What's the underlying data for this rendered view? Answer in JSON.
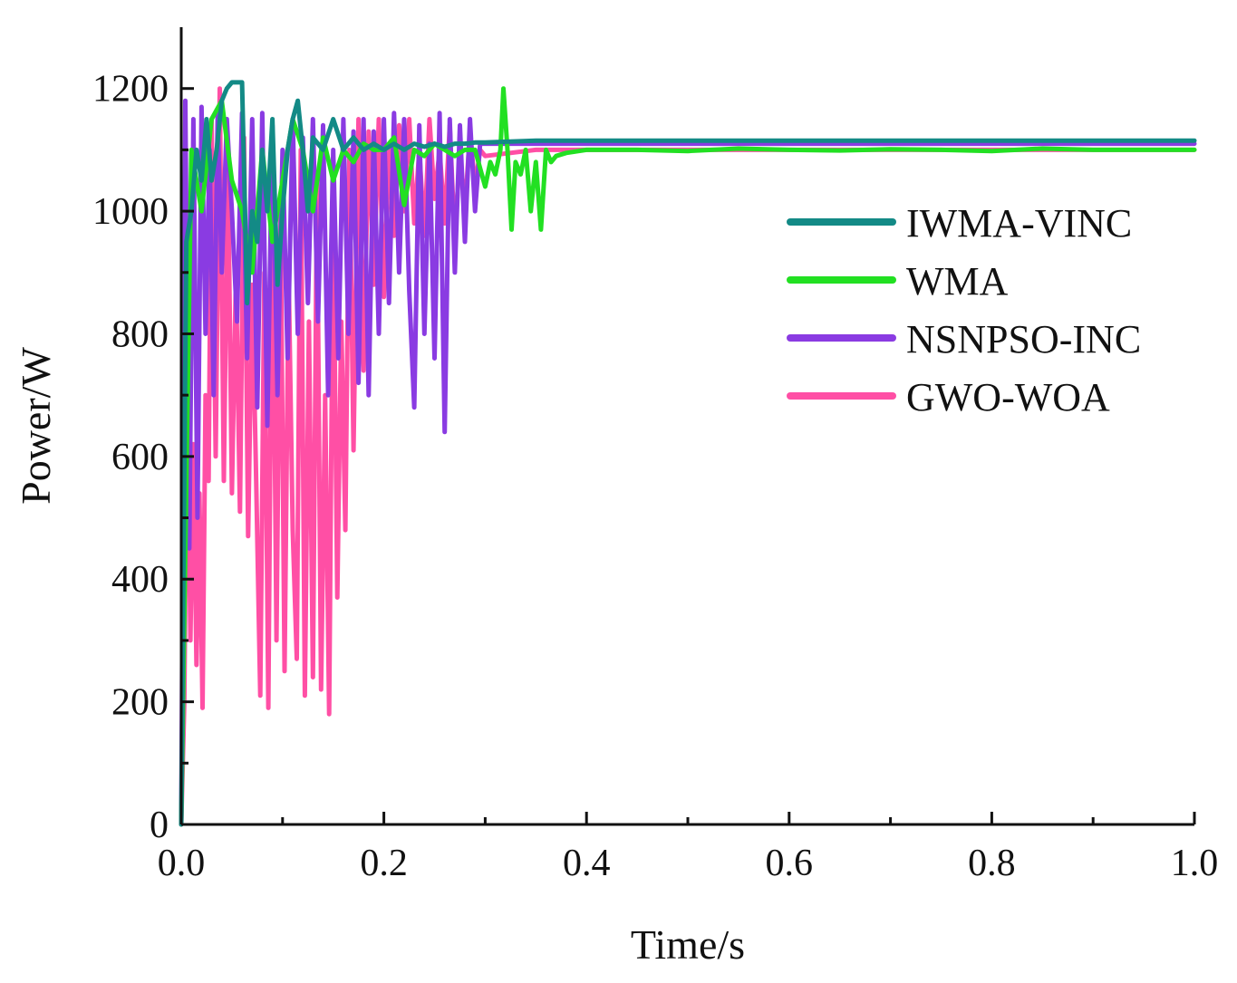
{
  "chart_data": {
    "type": "line",
    "xlabel": "Time/s",
    "ylabel": "Power/W",
    "xlim": [
      0,
      1.0
    ],
    "ylim": [
      0,
      1300
    ],
    "x_ticks": [
      0.0,
      0.2,
      0.4,
      0.6,
      0.8,
      1.0
    ],
    "x_tick_labels": [
      "0.0",
      "0.2",
      "0.4",
      "0.6",
      "0.8",
      "1.0"
    ],
    "x_minor_ticks": [
      0.1,
      0.3,
      0.5,
      0.7,
      0.9
    ],
    "y_ticks": [
      0,
      200,
      400,
      600,
      800,
      1000,
      1200
    ],
    "y_tick_labels": [
      "0",
      "200",
      "400",
      "600",
      "800",
      "1000",
      "1200"
    ],
    "y_minor_ticks": [
      100,
      300,
      500,
      700,
      900,
      1100
    ],
    "grid": false,
    "legend_position": "right-upper",
    "series": [
      {
        "name": "GWO-WOA",
        "color": "#ff4fa5",
        "x": [
          0.0,
          0.003,
          0.006,
          0.009,
          0.012,
          0.015,
          0.018,
          0.021,
          0.024,
          0.027,
          0.03,
          0.034,
          0.038,
          0.042,
          0.046,
          0.05,
          0.054,
          0.058,
          0.062,
          0.066,
          0.07,
          0.074,
          0.078,
          0.082,
          0.086,
          0.09,
          0.094,
          0.098,
          0.102,
          0.106,
          0.11,
          0.114,
          0.118,
          0.122,
          0.126,
          0.13,
          0.134,
          0.138,
          0.142,
          0.146,
          0.15,
          0.154,
          0.158,
          0.162,
          0.166,
          0.17,
          0.175,
          0.18,
          0.185,
          0.19,
          0.195,
          0.2,
          0.205,
          0.21,
          0.215,
          0.22,
          0.225,
          0.23,
          0.235,
          0.24,
          0.245,
          0.25,
          0.255,
          0.26,
          0.265,
          0.27,
          0.275,
          0.28,
          0.285,
          0.29,
          0.295,
          0.3,
          0.35,
          0.4,
          0.5,
          0.6,
          0.7,
          0.8,
          0.9,
          1.0
        ],
        "values": [
          0,
          200,
          750,
          300,
          620,
          260,
          540,
          190,
          700,
          560,
          1150,
          600,
          1200,
          560,
          1100,
          540,
          900,
          510,
          1120,
          470,
          880,
          560,
          210,
          900,
          190,
          1050,
          300,
          1000,
          250,
          900,
          480,
          270,
          1100,
          210,
          820,
          240,
          1050,
          220,
          700,
          180,
          1000,
          370,
          820,
          480,
          1100,
          610,
          1150,
          740,
          1130,
          880,
          1150,
          860,
          1100,
          960,
          1140,
          1000,
          1150,
          980,
          1100,
          960,
          1150,
          1020,
          1100,
          980,
          1140,
          950,
          1100,
          1000,
          1130,
          1040,
          1100,
          1090,
          1100,
          1100,
          1100,
          1100,
          1100,
          1100,
          1100,
          1100
        ]
      },
      {
        "name": "NSNPSO-INC",
        "color": "#8a3be2",
        "x": [
          0.0,
          0.004,
          0.008,
          0.012,
          0.016,
          0.02,
          0.024,
          0.028,
          0.032,
          0.036,
          0.04,
          0.045,
          0.05,
          0.055,
          0.06,
          0.065,
          0.07,
          0.075,
          0.08,
          0.085,
          0.09,
          0.095,
          0.1,
          0.105,
          0.11,
          0.115,
          0.12,
          0.125,
          0.13,
          0.135,
          0.14,
          0.145,
          0.15,
          0.155,
          0.16,
          0.165,
          0.17,
          0.175,
          0.18,
          0.185,
          0.19,
          0.195,
          0.2,
          0.205,
          0.21,
          0.215,
          0.22,
          0.225,
          0.23,
          0.235,
          0.24,
          0.245,
          0.25,
          0.255,
          0.26,
          0.265,
          0.27,
          0.275,
          0.28,
          0.285,
          0.29,
          0.295,
          0.3,
          0.35,
          0.4,
          0.5,
          0.6,
          0.7,
          0.8,
          0.9,
          1.0
        ],
        "values": [
          0,
          1180,
          450,
          1150,
          500,
          1170,
          800,
          1100,
          700,
          1160,
          900,
          1150,
          1000,
          820,
          1160,
          760,
          1150,
          680,
          1160,
          650,
          1140,
          700,
          1100,
          760,
          1150,
          800,
          1120,
          850,
          1150,
          820,
          1140,
          700,
          1100,
          760,
          1150,
          800,
          1130,
          720,
          1150,
          700,
          1130,
          800,
          1150,
          850,
          1160,
          900,
          1150,
          870,
          680,
          1140,
          800,
          1110,
          760,
          1160,
          640,
          1150,
          900,
          1140,
          950,
          1150,
          1000,
          1110,
          1110,
          1110,
          1110,
          1110,
          1110,
          1110,
          1110,
          1110,
          1110
        ]
      },
      {
        "name": "WMA",
        "color": "#22e022",
        "x": [
          0.0,
          0.01,
          0.02,
          0.03,
          0.04,
          0.05,
          0.06,
          0.07,
          0.08,
          0.09,
          0.1,
          0.11,
          0.12,
          0.13,
          0.14,
          0.15,
          0.16,
          0.17,
          0.18,
          0.19,
          0.2,
          0.21,
          0.22,
          0.23,
          0.24,
          0.25,
          0.26,
          0.27,
          0.28,
          0.29,
          0.3,
          0.305,
          0.31,
          0.315,
          0.318,
          0.322,
          0.326,
          0.33,
          0.335,
          0.34,
          0.345,
          0.35,
          0.355,
          0.36,
          0.365,
          0.37,
          0.38,
          0.4,
          0.45,
          0.5,
          0.55,
          0.6,
          0.65,
          0.7,
          0.75,
          0.8,
          0.85,
          0.9,
          0.95,
          1.0
        ],
        "values": [
          0,
          1100,
          1000,
          1150,
          1180,
          1050,
          1000,
          900,
          1100,
          950,
          1050,
          1150,
          1100,
          1000,
          1120,
          1050,
          1100,
          1080,
          1110,
          1100,
          1100,
          1120,
          1010,
          1100,
          1090,
          1110,
          1100,
          1090,
          1100,
          1100,
          1040,
          1080,
          1060,
          1100,
          1200,
          1100,
          970,
          1080,
          1060,
          1100,
          1000,
          1080,
          970,
          1100,
          1080,
          1090,
          1095,
          1100,
          1100,
          1098,
          1102,
          1100,
          1099,
          1101,
          1100,
          1098,
          1102,
          1100,
          1100,
          1100
        ]
      },
      {
        "name": "IWMA-VINC",
        "color": "#138a86",
        "x": [
          0.0,
          0.005,
          0.01,
          0.015,
          0.02,
          0.025,
          0.03,
          0.035,
          0.04,
          0.045,
          0.05,
          0.055,
          0.06,
          0.065,
          0.07,
          0.075,
          0.08,
          0.085,
          0.09,
          0.095,
          0.1,
          0.105,
          0.11,
          0.115,
          0.12,
          0.125,
          0.13,
          0.14,
          0.15,
          0.16,
          0.17,
          0.18,
          0.19,
          0.2,
          0.21,
          0.22,
          0.23,
          0.24,
          0.25,
          0.26,
          0.27,
          0.28,
          0.29,
          0.3,
          0.35,
          0.4,
          0.5,
          0.6,
          0.7,
          0.8,
          0.9,
          1.0
        ],
        "values": [
          0,
          950,
          1000,
          1100,
          1050,
          1150,
          1050,
          1100,
          1180,
          1200,
          1210,
          1210,
          1210,
          850,
          1000,
          950,
          1100,
          1000,
          1150,
          880,
          1000,
          1100,
          1150,
          1180,
          1100,
          1000,
          1120,
          1100,
          1150,
          1100,
          1120,
          1100,
          1110,
          1100,
          1110,
          1100,
          1110,
          1105,
          1110,
          1105,
          1110,
          1110,
          1112,
          1112,
          1115,
          1115,
          1115,
          1115,
          1115,
          1115,
          1115,
          1115
        ]
      }
    ],
    "legend_order": [
      "IWMA-VINC",
      "WMA",
      "NSNPSO-INC",
      "GWO-WOA"
    ]
  }
}
